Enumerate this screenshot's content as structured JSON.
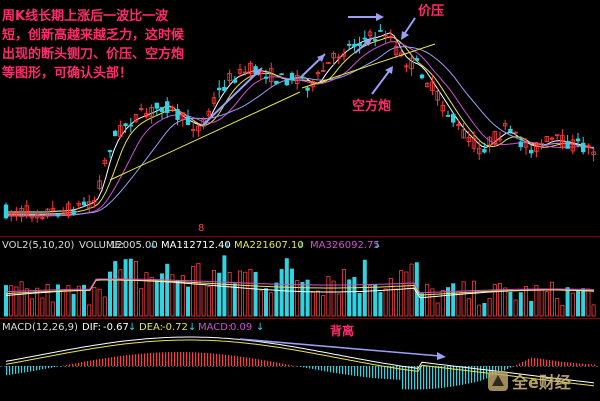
{
  "chart_data": [
    {
      "type": "candlestick",
      "note_lines": [
        "周K线长期上涨后一波比一波",
        "短，创新高越来越乏力，这时候",
        "出现的断头铡刀、价压、空方炮",
        "等图形，可确认头部！"
      ],
      "annotations": {
        "price_pressure": "价压",
        "short_cannon": "空方炮"
      },
      "marker": "8",
      "moving_average_colors": {
        "ma5": "#ffffff",
        "ma10": "#e6e64b",
        "ma20": "#d14fd1",
        "ma60": "#9aa0f5"
      }
    },
    {
      "type": "bar",
      "indicator": {
        "name": "VOL2(5,10,20)",
        "volume_label": "VOLUME:",
        "volume_value": "12005.00",
        "ma1_label": "MA1:",
        "ma1_value": "12712.40",
        "ma2_label": "MA2:",
        "ma2_value": "21607.10",
        "ma3_label": "MA3:",
        "ma3_value": "26092.75",
        "arrow": "↓"
      }
    },
    {
      "type": "bar",
      "indicator": {
        "name": "MACD(12,26,9)",
        "dif_label": "DIF:",
        "dif_value": "-0.67",
        "dea_label": "DEA:",
        "dea_value": "-0.72",
        "macd_label": "MACD:",
        "macd_value": "0.09",
        "arrow": "↓"
      },
      "annotation": "背离"
    }
  ],
  "watermark": "全e财经",
  "colors": {
    "up": "#ff3c3c",
    "down": "#31d3e0",
    "white": "#ffffff",
    "yellow": "#e6e64b",
    "magenta": "#d14fd1",
    "blue": "#9aa0f5",
    "annot": "#ff2b6b",
    "grid": "#8b0000"
  }
}
